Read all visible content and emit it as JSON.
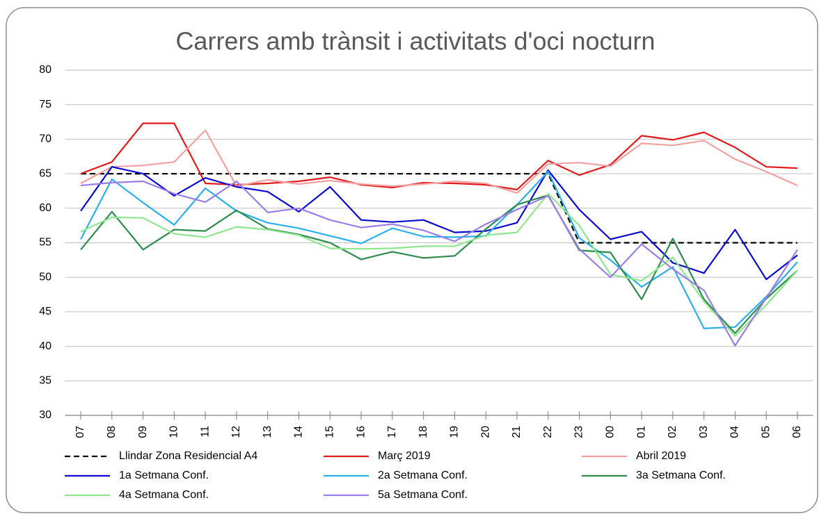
{
  "chart_data": {
    "type": "line",
    "title": "Carrers amb trànsit i activitats d'oci nocturn",
    "categories": [
      "07",
      "08",
      "09",
      "10",
      "11",
      "12",
      "13",
      "14",
      "15",
      "16",
      "17",
      "18",
      "19",
      "20",
      "21",
      "22",
      "23",
      "00",
      "01",
      "02",
      "03",
      "04",
      "05",
      "06"
    ],
    "ylim": [
      30,
      80
    ],
    "yticks": [
      30,
      35,
      40,
      45,
      50,
      55,
      60,
      65,
      70,
      75,
      80
    ],
    "grid": true,
    "legend": "bottom",
    "series": [
      {
        "name": "Llindar Zona Residencial A4",
        "color": "#000000",
        "dashed": true,
        "values": [
          65,
          65,
          65,
          65,
          65,
          65,
          65,
          65,
          65,
          65,
          65,
          65,
          65,
          65,
          65,
          65,
          55,
          55,
          55,
          55,
          55,
          55,
          55,
          55
        ]
      },
      {
        "name": "Març 2019",
        "color": "#e31a1c",
        "values": [
          65,
          66.7,
          72.3,
          72.3,
          63.6,
          63.4,
          63.6,
          63.9,
          64.5,
          63.4,
          63,
          63.7,
          63.6,
          63.4,
          62.7,
          66.9,
          64.8,
          66.3,
          70.5,
          69.9,
          71,
          68.8,
          66,
          65.8
        ]
      },
      {
        "name": "Abril 2019",
        "color": "#f4a0a0",
        "values": [
          63.6,
          66,
          66.2,
          66.7,
          71.3,
          63.2,
          64.1,
          63.5,
          64,
          63.5,
          63.2,
          63.5,
          63.9,
          63.6,
          62.2,
          66.4,
          66.6,
          66.1,
          69.4,
          69.1,
          69.8,
          67.1,
          65.3,
          63.3
        ]
      },
      {
        "name": "1a Setmana Conf.",
        "color": "#0a0ad0",
        "values": [
          59.6,
          66,
          65,
          61.8,
          64.4,
          63.1,
          62.4,
          59.5,
          63.1,
          58.3,
          58,
          58.3,
          56.5,
          56.7,
          57.9,
          65.5,
          59.8,
          55.5,
          56.6,
          52.1,
          50.6,
          56.9,
          49.7,
          53.2
        ]
      },
      {
        "name": "2a Setmana Conf.",
        "color": "#2ab0ee",
        "values": [
          55.5,
          64.2,
          60.8,
          57.6,
          62.9,
          59.6,
          57.9,
          57.1,
          56,
          54.9,
          57.1,
          55.9,
          55.8,
          56,
          60.5,
          65.3,
          55.7,
          52.5,
          48.6,
          51.5,
          42.6,
          42.8,
          47.2,
          52.2
        ]
      },
      {
        "name": "3a Setmana Conf.",
        "color": "#2e8b4e",
        "values": [
          54,
          59.5,
          54,
          56.9,
          56.7,
          59.7,
          57,
          56.2,
          55,
          52.6,
          53.7,
          52.8,
          53.1,
          57,
          60.5,
          61.9,
          53.9,
          53.6,
          46.8,
          55.6,
          46.8,
          41.9,
          46.9,
          51
        ]
      },
      {
        "name": "4a Setmana Conf.",
        "color": "#8ee68e",
        "values": [
          56.6,
          58.7,
          58.6,
          56.3,
          55.8,
          57.3,
          56.9,
          56.1,
          54.2,
          54.1,
          54.2,
          54.5,
          54.5,
          56.1,
          56.5,
          62.1,
          57.5,
          50.4,
          49.5,
          52.9,
          46.5,
          41.5,
          46,
          51
        ]
      },
      {
        "name": "5a Setmana Conf.",
        "color": "#9b7de8",
        "values": [
          63.3,
          63.7,
          63.9,
          62.1,
          60.9,
          63.9,
          59.4,
          60,
          58.3,
          57.2,
          57.7,
          56.8,
          55.2,
          57.7,
          59.8,
          61.8,
          54.1,
          50,
          54.8,
          51.2,
          48.1,
          40.1,
          47,
          54
        ]
      }
    ]
  }
}
